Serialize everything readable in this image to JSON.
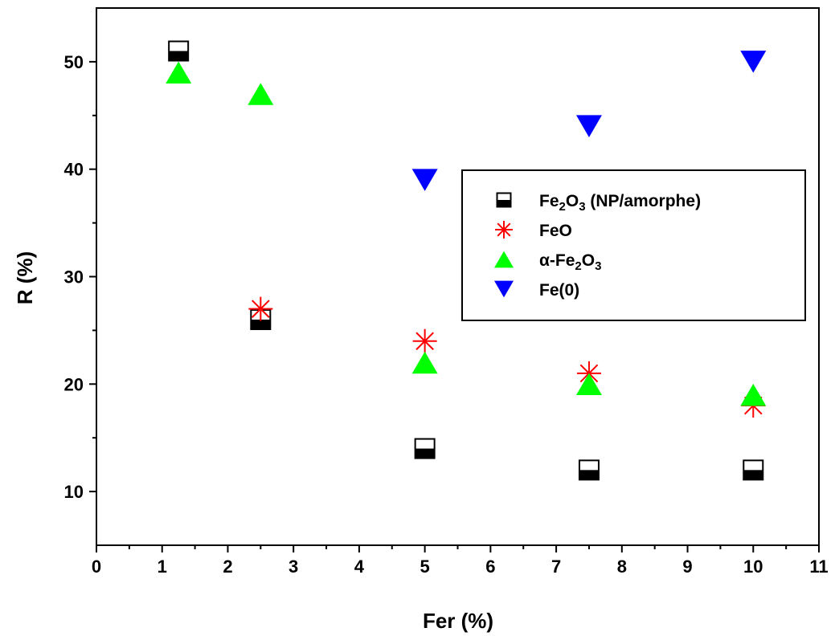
{
  "chart_data": {
    "type": "scatter",
    "xlabel": "Fer (%)",
    "ylabel": "R (%)",
    "xlim": [
      0,
      11
    ],
    "ylim": [
      5,
      55
    ],
    "xticks": [
      "0",
      "1",
      "2",
      "3",
      "4",
      "5",
      "6",
      "7",
      "8",
      "9",
      "10",
      "11"
    ],
    "yticks": [
      "10",
      "20",
      "30",
      "40",
      "50"
    ],
    "grid": false,
    "legend_position": "center-right",
    "series": [
      {
        "name": "Fe2O3 (NP/amorphe)",
        "name_parts": [
          "Fe",
          "2",
          "O",
          "3",
          " (NP/amorphe)"
        ],
        "marker": "half-filled-square",
        "color": "#000000",
        "x": [
          1.25,
          2.5,
          5,
          7.5,
          10
        ],
        "y": [
          51,
          26,
          14,
          12,
          12
        ]
      },
      {
        "name": "FeO",
        "name_parts": [
          "FeO"
        ],
        "marker": "asterisk",
        "color": "#ff0000",
        "x": [
          2.5,
          5,
          7.5,
          10
        ],
        "y": [
          27,
          24,
          21,
          18
        ]
      },
      {
        "name": "α-Fe2O3",
        "name_parts": [
          "α-Fe",
          "2",
          "O",
          "3"
        ],
        "marker": "triangle-up",
        "color": "#00ff00",
        "x": [
          1.25,
          2.5,
          5,
          7.5,
          10
        ],
        "y": [
          49,
          47,
          22,
          20,
          19
        ]
      },
      {
        "name": "Fe(0)",
        "name_parts": [
          "Fe(0)"
        ],
        "marker": "triangle-down",
        "color": "#0000ff",
        "x": [
          5,
          7.5,
          10
        ],
        "y": [
          39,
          44,
          50
        ]
      }
    ]
  }
}
